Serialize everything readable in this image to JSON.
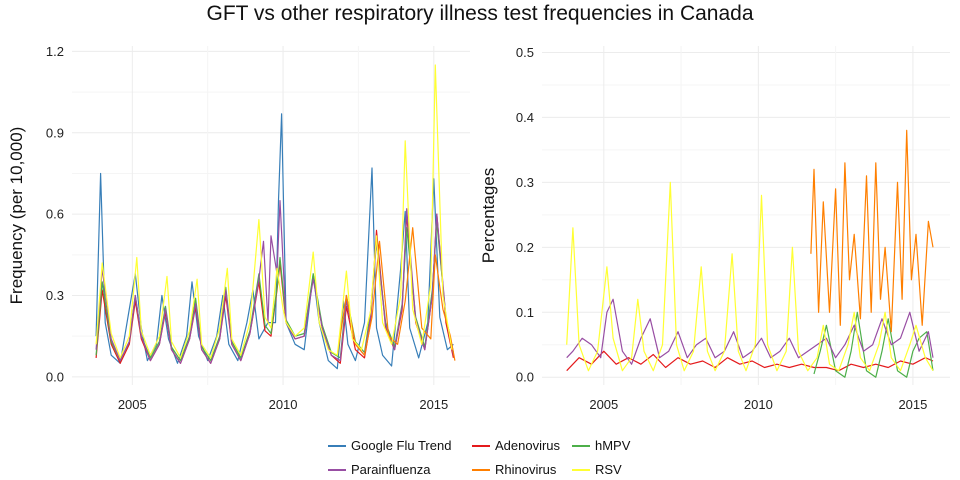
{
  "figure": {
    "title": "GFT vs other respiratory illness test frequencies in Canada"
  },
  "chart_data": [
    {
      "type": "line",
      "panel": "left",
      "ylabel": "Frequency (per 10,000)",
      "xlabel": "",
      "xlim": [
        2003.0,
        2016.2
      ],
      "ylim": [
        -0.03,
        1.22
      ],
      "xticks": [
        2005,
        2010,
        2015
      ],
      "yticks": [
        0.0,
        0.3,
        0.6,
        0.9,
        1.2
      ],
      "ytick_labels": [
        "0.0",
        "0.3",
        "0.6",
        "0.9",
        "1.2"
      ],
      "grid": true,
      "series": [
        {
          "name": "Google Flu Trend",
          "color": "#377eb8",
          "x": [
            2003.8,
            2003.95,
            2004.1,
            2004.3,
            2004.6,
            2004.9,
            2005.1,
            2005.3,
            2005.5,
            2005.8,
            2005.98,
            2006.2,
            2006.5,
            2006.8,
            2006.98,
            2007.2,
            2007.5,
            2007.8,
            2008.0,
            2008.2,
            2008.5,
            2008.8,
            2009.0,
            2009.2,
            2009.5,
            2009.75,
            2009.85,
            2009.95,
            2010.1,
            2010.4,
            2010.7,
            2011.0,
            2011.2,
            2011.5,
            2011.8,
            2012.0,
            2012.15,
            2012.4,
            2012.7,
            2012.95,
            2013.1,
            2013.3,
            2013.6,
            2013.9,
            2014.05,
            2014.2,
            2014.5,
            2014.8,
            2015.0,
            2015.2,
            2015.45,
            2015.65
          ],
          "y": [
            0.15,
            0.75,
            0.2,
            0.08,
            0.05,
            0.25,
            0.38,
            0.18,
            0.06,
            0.12,
            0.3,
            0.14,
            0.05,
            0.15,
            0.35,
            0.15,
            0.06,
            0.15,
            0.3,
            0.12,
            0.06,
            0.2,
            0.32,
            0.14,
            0.2,
            0.2,
            0.65,
            0.97,
            0.2,
            0.12,
            0.1,
            0.38,
            0.2,
            0.06,
            0.03,
            0.28,
            0.12,
            0.06,
            0.2,
            0.77,
            0.18,
            0.08,
            0.04,
            0.4,
            0.61,
            0.18,
            0.07,
            0.2,
            0.73,
            0.22,
            0.1,
            0.12
          ]
        },
        {
          "name": "Adenovirus",
          "color": "#e41a1c",
          "x": [
            2003.8,
            2004.0,
            2004.3,
            2004.6,
            2004.9,
            2005.1,
            2005.3,
            2005.6,
            2005.9,
            2006.1,
            2006.3,
            2006.6,
            2006.9,
            2007.1,
            2007.3,
            2007.6,
            2007.9,
            2008.1,
            2008.3,
            2008.6,
            2008.9,
            2009.2,
            2009.4,
            2009.6,
            2009.8,
            2009.9,
            2010.1,
            2010.4,
            2010.7,
            2011.0,
            2011.3,
            2011.6,
            2011.9,
            2012.1,
            2012.4,
            2012.7,
            2012.9,
            2013.1,
            2013.4,
            2013.7,
            2013.95,
            2014.1,
            2014.4,
            2014.7,
            2014.95,
            2015.1,
            2015.4,
            2015.65
          ],
          "y": [
            0.07,
            0.32,
            0.12,
            0.05,
            0.12,
            0.28,
            0.14,
            0.06,
            0.12,
            0.24,
            0.1,
            0.05,
            0.14,
            0.26,
            0.1,
            0.05,
            0.14,
            0.3,
            0.12,
            0.06,
            0.16,
            0.35,
            0.17,
            0.15,
            0.32,
            0.42,
            0.2,
            0.14,
            0.15,
            0.37,
            0.18,
            0.08,
            0.05,
            0.26,
            0.1,
            0.07,
            0.2,
            0.54,
            0.18,
            0.1,
            0.25,
            0.6,
            0.2,
            0.1,
            0.3,
            0.6,
            0.2,
            0.07
          ]
        },
        {
          "name": "hMPV",
          "color": "#4daf4a",
          "x": [
            2003.8,
            2004.0,
            2004.3,
            2004.6,
            2004.9,
            2005.1,
            2005.3,
            2005.6,
            2005.9,
            2006.1,
            2006.3,
            2006.6,
            2006.9,
            2007.1,
            2007.3,
            2007.6,
            2007.9,
            2008.1,
            2008.3,
            2008.6,
            2008.9,
            2009.2,
            2009.4,
            2009.6,
            2009.8,
            2009.9,
            2010.1,
            2010.4,
            2010.7,
            2011.0,
            2011.3,
            2011.6,
            2011.9,
            2012.1,
            2012.4,
            2012.7,
            2012.9,
            2013.1,
            2013.4,
            2013.7,
            2013.95,
            2014.1,
            2014.4,
            2014.7,
            2014.95,
            2015.1,
            2015.4,
            2015.65
          ],
          "y": [
            0.08,
            0.35,
            0.13,
            0.06,
            0.13,
            0.3,
            0.15,
            0.07,
            0.13,
            0.26,
            0.11,
            0.06,
            0.15,
            0.29,
            0.11,
            0.06,
            0.15,
            0.33,
            0.13,
            0.07,
            0.17,
            0.38,
            0.19,
            0.16,
            0.33,
            0.44,
            0.21,
            0.15,
            0.16,
            0.38,
            0.19,
            0.09,
            0.07,
            0.3,
            0.13,
            0.09,
            0.24,
            0.5,
            0.2,
            0.11,
            0.27,
            0.55,
            0.22,
            0.11,
            0.32,
            0.57,
            0.22,
            0.09
          ]
        },
        {
          "name": "Parainfluenza",
          "color": "#984ea3",
          "x": [
            2003.8,
            2004.0,
            2004.3,
            2004.6,
            2004.9,
            2005.1,
            2005.3,
            2005.6,
            2005.9,
            2006.1,
            2006.3,
            2006.6,
            2006.9,
            2007.1,
            2007.3,
            2007.6,
            2007.9,
            2008.1,
            2008.3,
            2008.6,
            2008.9,
            2009.2,
            2009.35,
            2009.5,
            2009.6,
            2009.8,
            2009.9,
            2010.1,
            2010.4,
            2010.7,
            2011.0,
            2011.3,
            2011.6,
            2011.9,
            2012.1,
            2012.4,
            2012.7,
            2012.9,
            2013.1,
            2013.4,
            2013.7,
            2013.95,
            2014.1,
            2014.4,
            2014.7,
            2014.95,
            2015.1,
            2015.4,
            2015.65
          ],
          "y": [
            0.1,
            0.4,
            0.14,
            0.06,
            0.13,
            0.3,
            0.15,
            0.06,
            0.12,
            0.25,
            0.1,
            0.05,
            0.14,
            0.27,
            0.1,
            0.05,
            0.14,
            0.32,
            0.12,
            0.06,
            0.16,
            0.36,
            0.5,
            0.2,
            0.52,
            0.38,
            0.65,
            0.2,
            0.14,
            0.15,
            0.36,
            0.18,
            0.08,
            0.06,
            0.28,
            0.12,
            0.08,
            0.22,
            0.5,
            0.19,
            0.1,
            0.26,
            0.62,
            0.21,
            0.1,
            0.3,
            0.6,
            0.22,
            0.08
          ]
        },
        {
          "name": "Rhinovirus",
          "color": "#ff7f00",
          "x": [
            2011.8,
            2012.1,
            2012.4,
            2012.7,
            2012.95,
            2013.2,
            2013.5,
            2013.8,
            2014.05,
            2014.3,
            2014.6,
            2014.9,
            2015.05,
            2015.3,
            2015.55,
            2015.7
          ],
          "y": [
            0.08,
            0.3,
            0.12,
            0.08,
            0.22,
            0.5,
            0.15,
            0.12,
            0.28,
            0.55,
            0.18,
            0.14,
            0.45,
            0.25,
            0.15,
            0.06
          ]
        },
        {
          "name": "RSV",
          "color": "#ffff33",
          "x": [
            2003.8,
            2004.0,
            2004.3,
            2004.6,
            2004.9,
            2005.15,
            2005.3,
            2005.6,
            2005.9,
            2006.15,
            2006.3,
            2006.6,
            2006.9,
            2007.15,
            2007.3,
            2007.6,
            2007.9,
            2008.15,
            2008.3,
            2008.6,
            2008.9,
            2009.2,
            2009.4,
            2009.6,
            2009.8,
            2010.0,
            2010.1,
            2010.4,
            2010.7,
            2011.0,
            2011.2,
            2011.5,
            2011.8,
            2012.1,
            2012.3,
            2012.6,
            2012.9,
            2013.1,
            2013.3,
            2013.6,
            2013.9,
            2014.05,
            2014.3,
            2014.6,
            2014.9,
            2015.05,
            2015.3,
            2015.6
          ],
          "y": [
            0.12,
            0.42,
            0.16,
            0.07,
            0.15,
            0.44,
            0.17,
            0.08,
            0.15,
            0.37,
            0.13,
            0.07,
            0.17,
            0.36,
            0.12,
            0.07,
            0.18,
            0.4,
            0.14,
            0.08,
            0.2,
            0.58,
            0.22,
            0.18,
            0.4,
            0.25,
            0.2,
            0.15,
            0.18,
            0.46,
            0.2,
            0.1,
            0.08,
            0.39,
            0.14,
            0.1,
            0.24,
            0.52,
            0.2,
            0.12,
            0.3,
            0.87,
            0.25,
            0.12,
            0.34,
            1.15,
            0.3,
            0.1
          ]
        }
      ]
    },
    {
      "type": "line",
      "panel": "right",
      "ylabel": "Percentages",
      "xlabel": "",
      "xlim": [
        2003.0,
        2016.2
      ],
      "ylim": [
        -0.012,
        0.51
      ],
      "xticks": [
        2005,
        2010,
        2015
      ],
      "yticks": [
        0.0,
        0.1,
        0.2,
        0.3,
        0.4,
        0.5
      ],
      "ytick_labels": [
        "0.0",
        "0.1",
        "0.2",
        "0.3",
        "0.4",
        "0.5"
      ],
      "grid": true,
      "series": [
        {
          "name": "Adenovirus",
          "color": "#e41a1c",
          "x": [
            2003.8,
            2004.2,
            2004.6,
            2005.0,
            2005.4,
            2005.8,
            2006.2,
            2006.6,
            2007.0,
            2007.4,
            2007.8,
            2008.2,
            2008.6,
            2009.0,
            2009.4,
            2009.8,
            2010.2,
            2010.6,
            2011.0,
            2011.4,
            2011.8,
            2012.2,
            2012.6,
            2013.0,
            2013.4,
            2013.8,
            2014.2,
            2014.6,
            2015.0,
            2015.4,
            2015.65
          ],
          "y": [
            0.01,
            0.03,
            0.02,
            0.04,
            0.02,
            0.03,
            0.02,
            0.035,
            0.015,
            0.03,
            0.02,
            0.025,
            0.015,
            0.03,
            0.02,
            0.025,
            0.015,
            0.02,
            0.015,
            0.02,
            0.015,
            0.015,
            0.01,
            0.02,
            0.015,
            0.02,
            0.015,
            0.025,
            0.02,
            0.03,
            0.025
          ]
        },
        {
          "name": "hMPV",
          "color": "#4daf4a",
          "x": [
            2011.8,
            2012.0,
            2012.2,
            2012.5,
            2012.8,
            2013.0,
            2013.2,
            2013.5,
            2013.8,
            2014.0,
            2014.2,
            2014.5,
            2014.8,
            2015.0,
            2015.2,
            2015.45,
            2015.65
          ],
          "y": [
            0.005,
            0.04,
            0.08,
            0.01,
            0.0,
            0.04,
            0.1,
            0.01,
            0.0,
            0.04,
            0.09,
            0.01,
            0.0,
            0.04,
            0.06,
            0.07,
            0.01
          ]
        },
        {
          "name": "Parainfluenza",
          "color": "#984ea3",
          "x": [
            2003.8,
            2004.0,
            2004.3,
            2004.6,
            2004.9,
            2005.1,
            2005.3,
            2005.6,
            2005.9,
            2006.2,
            2006.5,
            2006.8,
            2007.1,
            2007.4,
            2007.7,
            2008.0,
            2008.3,
            2008.6,
            2008.9,
            2009.2,
            2009.5,
            2009.8,
            2010.1,
            2010.4,
            2010.7,
            2011.0,
            2011.3,
            2011.6,
            2011.9,
            2012.2,
            2012.5,
            2012.8,
            2013.1,
            2013.4,
            2013.7,
            2014.0,
            2014.3,
            2014.6,
            2014.9,
            2015.2,
            2015.5,
            2015.65
          ],
          "y": [
            0.03,
            0.04,
            0.06,
            0.05,
            0.03,
            0.1,
            0.12,
            0.04,
            0.02,
            0.06,
            0.09,
            0.03,
            0.04,
            0.07,
            0.03,
            0.05,
            0.06,
            0.03,
            0.04,
            0.07,
            0.03,
            0.04,
            0.06,
            0.03,
            0.04,
            0.06,
            0.03,
            0.04,
            0.05,
            0.06,
            0.03,
            0.05,
            0.08,
            0.04,
            0.05,
            0.09,
            0.05,
            0.06,
            0.1,
            0.04,
            0.07,
            0.03
          ]
        },
        {
          "name": "Rhinovirus",
          "color": "#ff7f00",
          "x": [
            2011.7,
            2011.8,
            2011.95,
            2012.1,
            2012.3,
            2012.5,
            2012.65,
            2012.8,
            2012.95,
            2013.1,
            2013.3,
            2013.5,
            2013.65,
            2013.8,
            2013.95,
            2014.1,
            2014.3,
            2014.5,
            2014.65,
            2014.8,
            2014.95,
            2015.1,
            2015.3,
            2015.5,
            2015.65
          ],
          "y": [
            0.19,
            0.32,
            0.1,
            0.27,
            0.1,
            0.29,
            0.08,
            0.33,
            0.15,
            0.22,
            0.09,
            0.31,
            0.1,
            0.33,
            0.12,
            0.2,
            0.07,
            0.3,
            0.12,
            0.38,
            0.15,
            0.22,
            0.08,
            0.24,
            0.2
          ]
        },
        {
          "name": "RSV",
          "color": "#ffff33",
          "x": [
            2003.8,
            2004.0,
            2004.2,
            2004.5,
            2004.8,
            2005.1,
            2005.3,
            2005.6,
            2005.9,
            2006.1,
            2006.3,
            2006.6,
            2006.9,
            2007.15,
            2007.35,
            2007.6,
            2007.9,
            2008.15,
            2008.35,
            2008.6,
            2008.9,
            2009.15,
            2009.35,
            2009.6,
            2009.9,
            2010.1,
            2010.3,
            2010.6,
            2010.9,
            2011.1,
            2011.3,
            2011.6,
            2011.9,
            2012.1,
            2012.3,
            2012.6,
            2012.9,
            2013.1,
            2013.3,
            2013.6,
            2013.9,
            2014.1,
            2014.3,
            2014.6,
            2014.9,
            2015.1,
            2015.4,
            2015.65
          ],
          "y": [
            0.05,
            0.23,
            0.05,
            0.01,
            0.04,
            0.17,
            0.06,
            0.01,
            0.03,
            0.12,
            0.04,
            0.01,
            0.05,
            0.3,
            0.05,
            0.01,
            0.04,
            0.17,
            0.04,
            0.01,
            0.04,
            0.19,
            0.04,
            0.01,
            0.05,
            0.28,
            0.05,
            0.01,
            0.04,
            0.2,
            0.04,
            0.01,
            0.03,
            0.08,
            0.02,
            0.01,
            0.05,
            0.1,
            0.03,
            0.01,
            0.05,
            0.1,
            0.03,
            0.01,
            0.05,
            0.08,
            0.03,
            0.01
          ]
        }
      ]
    }
  ],
  "legend": {
    "placement": "bottom",
    "items": [
      {
        "label": "Google Flu Trend",
        "color": "#377eb8"
      },
      {
        "label": "Adenovirus",
        "color": "#e41a1c"
      },
      {
        "label": "hMPV",
        "color": "#4daf4a"
      },
      {
        "label": "Parainfluenza",
        "color": "#984ea3"
      },
      {
        "label": "Rhinovirus",
        "color": "#ff7f00"
      },
      {
        "label": "RSV",
        "color": "#ffff33"
      }
    ]
  }
}
